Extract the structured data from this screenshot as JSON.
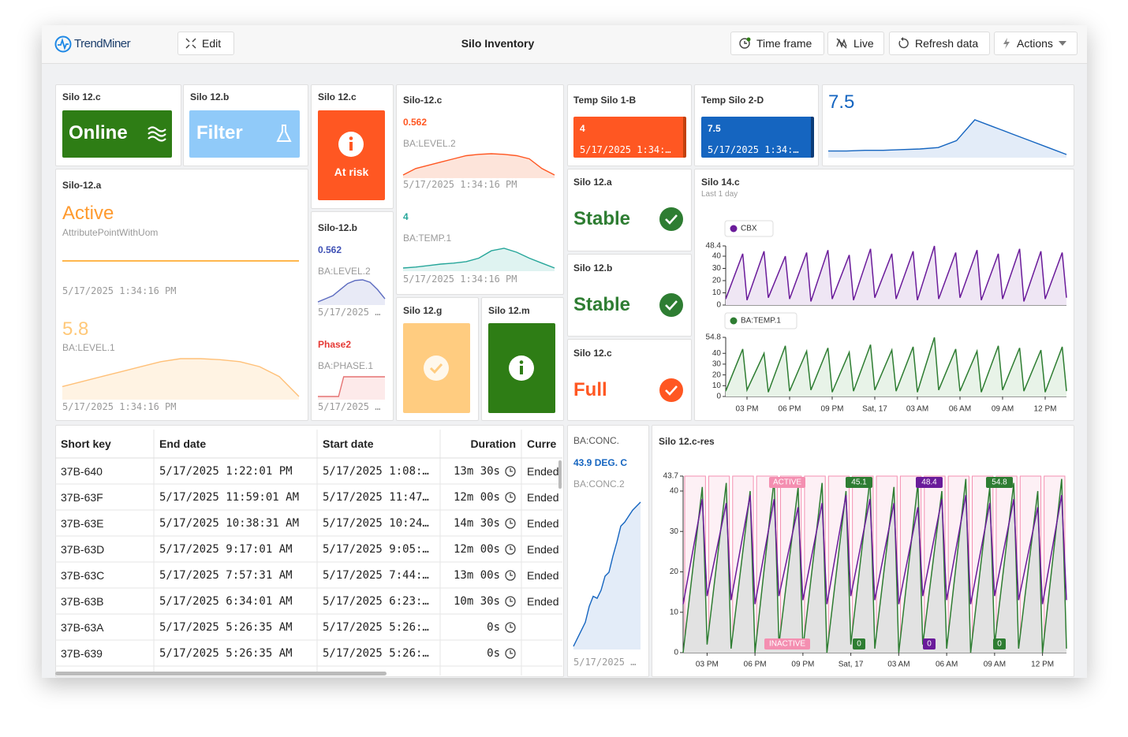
{
  "header": {
    "logo": "TrendMiner",
    "edit": "Edit",
    "title": "Silo Inventory",
    "buttons": [
      "Time frame",
      "Live",
      "Refresh data",
      "Actions"
    ]
  },
  "tiles": {
    "online": {
      "title": "Silo 12.c",
      "status": "Online"
    },
    "filter": {
      "title": "Silo 12.b",
      "status": "Filter"
    },
    "at_risk": {
      "title": "Silo 12.c",
      "status": "At risk"
    },
    "silo12c": {
      "title": "Silo-12.c",
      "items": [
        {
          "value": "0.562",
          "tag": "BA:LEVEL.2",
          "time": "5/17/2025 1:34:16 PM",
          "spark": [
            8,
            9,
            9.5,
            10,
            10.5,
            11,
            11.2,
            11.3,
            11.2,
            11,
            10.5,
            9,
            8
          ]
        },
        {
          "value": "4",
          "tag": "BA:TEMP.1",
          "time": "5/17/2025 1:34:16 PM",
          "spark": [
            3,
            3.2,
            3.5,
            3.8,
            4,
            4.3,
            5,
            6.5,
            7,
            6.2,
            5,
            4,
            3
          ]
        }
      ]
    },
    "temp1b": {
      "title": "Temp Silo 1-B",
      "value": "4",
      "time": "5/17/2025 1:34:…"
    },
    "temp2d": {
      "title": "Temp Silo 2-D",
      "value": "7.5",
      "time": "5/17/2025 1:34:…"
    },
    "value_tile": {
      "value": "7.5",
      "spark": [
        3,
        3,
        3.1,
        3.1,
        3.2,
        3.3,
        3.5,
        4.5,
        7.5,
        6.5,
        5.5,
        4.5,
        3.5,
        2.5
      ]
    },
    "silo12a": {
      "title": "Silo-12.a",
      "state": "Active",
      "attr": "AttributePointWithUom",
      "time": "5/17/2025 1:34:16 PM",
      "value": "5.8",
      "tag": "BA:LEVEL.1",
      "time2": "5/17/2025 1:34:16 PM",
      "spark": [
        3,
        3.5,
        4,
        4.5,
        5,
        5.5,
        5.8,
        5.8,
        5.7,
        5.5,
        5,
        4,
        2
      ]
    },
    "silo12b": {
      "title": "Silo-12.b",
      "value": "0.562",
      "tag": "BA:LEVEL.2",
      "time": "5/17/2025 …",
      "spark": [
        2,
        2.5,
        3,
        4,
        5,
        5.5,
        5.6,
        5.2,
        4,
        2.5
      ],
      "phase": "Phase2",
      "phase_tag": "BA:PHASE.1",
      "phase_time": "5/17/2025 …",
      "phase_spark": [
        0,
        0,
        0,
        0,
        0,
        1,
        1,
        1,
        1,
        1,
        1,
        1,
        1,
        1
      ]
    },
    "silo12g": {
      "title": "Silo 12.g"
    },
    "silo12m": {
      "title": "Silo 12.m"
    },
    "stable_a": {
      "title": "Silo 12.a",
      "status": "Stable"
    },
    "stable_b": {
      "title": "Silo 12.b",
      "status": "Stable"
    },
    "full": {
      "title": "Silo 12.c",
      "status": "Full"
    },
    "conc": {
      "title": "BA:CONC.",
      "value": "43.9 DEG. C",
      "tag": "BA:CONC.2",
      "time": "5/17/2025 …",
      "spark": [
        10,
        14,
        18,
        22,
        30,
        35,
        34,
        38,
        45,
        47,
        55,
        62,
        70,
        72,
        75,
        78,
        80,
        82
      ]
    }
  },
  "table": {
    "columns": [
      "Short key",
      "End date",
      "Start date",
      "Duration",
      "Curren"
    ],
    "rows": [
      [
        "37B-640",
        "5/17/2025 1:22:01 PM",
        "5/17/2025 1:08:…",
        "13m 30s",
        "Ended"
      ],
      [
        "37B-63F",
        "5/17/2025 11:59:01 AM",
        "5/17/2025 11:47…",
        "12m 00s",
        "Ended"
      ],
      [
        "37B-63E",
        "5/17/2025 10:38:31 AM",
        "5/17/2025 10:24…",
        "14m 30s",
        "Ended"
      ],
      [
        "37B-63D",
        "5/17/2025 9:17:01 AM",
        "5/17/2025 9:05:…",
        "12m 00s",
        "Ended"
      ],
      [
        "37B-63C",
        "5/17/2025 7:57:31 AM",
        "5/17/2025 7:44:…",
        "13m 00s",
        "Ended"
      ],
      [
        "37B-63B",
        "5/17/2025 6:34:01 AM",
        "5/17/2025 6:23:…",
        "10m 30s",
        "Ended"
      ],
      [
        "37B-63A",
        "5/17/2025 5:26:35 AM",
        "5/17/2025 5:26:…",
        "0s"
      ],
      [
        "37B-639",
        "5/17/2025 5:26:35 AM",
        "5/17/2025 5:26:…",
        "0s"
      ]
    ]
  },
  "chart_data": [
    {
      "type": "line",
      "title": "Silo 14.c",
      "subtitle": "Last 1 day",
      "x": [
        13.5,
        14.7,
        15,
        16.2,
        16.5,
        17.7,
        18,
        19.2,
        19.5,
        20.7,
        21,
        22.2,
        22.5,
        23.7,
        24,
        25.2,
        25.5,
        26.7,
        27,
        28.2,
        28.5,
        29.7,
        30,
        31.2,
        31.5,
        32.7,
        33,
        34.2,
        34.5,
        35.7,
        36,
        37.2,
        37.5
      ],
      "series": [
        {
          "name": "CBX",
          "color": "#6a1b9a",
          "values": [
            5,
            42,
            4,
            44,
            6,
            40,
            5,
            43,
            3,
            45,
            5,
            41,
            4,
            46,
            6,
            42,
            5,
            44,
            4,
            48.4,
            5,
            43,
            6,
            45,
            4,
            42,
            5,
            46,
            3,
            44,
            5,
            43,
            6
          ]
        }
      ],
      "xlim": [
        13.5,
        37.5
      ],
      "ylim": [
        0,
        48.4
      ],
      "yticks": [
        0,
        10,
        20,
        30,
        40,
        48.4
      ]
    },
    {
      "type": "line",
      "x": [
        13.5,
        14.7,
        15,
        16.2,
        16.5,
        17.7,
        18,
        19.2,
        19.5,
        20.7,
        21,
        22.2,
        22.5,
        23.7,
        24,
        25.2,
        25.5,
        26.7,
        27,
        28.2,
        28.5,
        29.7,
        30,
        31.2,
        31.5,
        32.7,
        33,
        34.2,
        34.5,
        35.7,
        36,
        37.2,
        37.5
      ],
      "series": [
        {
          "name": "BA:TEMP.1",
          "color": "#2e7d32",
          "values": [
            5,
            44,
            6,
            40,
            4,
            47,
            5,
            42,
            6,
            45,
            4,
            41,
            5,
            48,
            6,
            43,
            5,
            46,
            4,
            54.8,
            6,
            44,
            5,
            42,
            4,
            47,
            6,
            45,
            5,
            43,
            4,
            46,
            5
          ]
        }
      ],
      "xlim": [
        13.5,
        37.5
      ],
      "ylim": [
        0,
        54.8
      ],
      "yticks": [
        0,
        10,
        20,
        30,
        40,
        54.8
      ],
      "xticks": [
        {
          "value": 15,
          "label": "03 PM"
        },
        {
          "value": 18,
          "label": "06 PM"
        },
        {
          "value": 21,
          "label": "09 PM"
        },
        {
          "value": 24,
          "label": "Sat, 17"
        },
        {
          "value": 27,
          "label": "03 AM"
        },
        {
          "value": 30,
          "label": "06 AM"
        },
        {
          "value": 33,
          "label": "09 AM"
        },
        {
          "value": 36,
          "label": "12 PM"
        }
      ]
    },
    {
      "type": "line",
      "title": "Silo 12.c-res",
      "x": [
        13.5,
        14.7,
        15,
        16.2,
        16.5,
        17.7,
        18,
        19.2,
        19.5,
        20.7,
        21,
        22.2,
        22.5,
        23.7,
        24,
        25.2,
        25.5,
        26.7,
        27,
        28.2,
        28.5,
        29.7,
        30,
        31.2,
        31.5,
        32.7,
        33,
        34.2,
        34.5,
        35.7,
        36,
        37.2,
        37.5
      ],
      "series": [
        {
          "color": "#2e7d32",
          "values": [
            0,
            41,
            2,
            42,
            1,
            40,
            0,
            43,
            2,
            41,
            1,
            42,
            0,
            40,
            2,
            43,
            1,
            41,
            0,
            42,
            2,
            40,
            1,
            43,
            0,
            41,
            2,
            42,
            1,
            40,
            0,
            43,
            1
          ]
        },
        {
          "color": "#6a1b9a",
          "values": [
            12,
            38,
            14,
            37,
            13,
            39,
            12,
            38,
            14,
            36,
            13,
            37,
            12,
            39,
            14,
            38,
            13,
            37,
            12,
            36,
            14,
            38,
            13,
            39,
            12,
            37,
            14,
            38,
            13,
            36,
            12,
            39,
            13
          ]
        }
      ],
      "bands": [
        [
          13.6,
          14.9
        ],
        [
          15.1,
          16.4
        ],
        [
          16.6,
          17.9
        ],
        [
          18.1,
          19.4
        ],
        [
          19.6,
          20.9
        ],
        [
          21.1,
          22.4
        ],
        [
          22.6,
          23.9
        ],
        [
          24.1,
          25.4
        ],
        [
          25.6,
          26.9
        ],
        [
          27.1,
          28.4
        ],
        [
          28.6,
          29.9
        ],
        [
          30.1,
          31.4
        ],
        [
          31.6,
          32.9
        ],
        [
          33.1,
          34.4
        ],
        [
          34.6,
          35.9
        ],
        [
          36.1,
          37.4
        ]
      ],
      "annotations": [
        {
          "text": "ACTIVE",
          "color": "#f48fb1"
        },
        {
          "text": "INACTIVE",
          "color": "#f48fb1"
        },
        {
          "text": "45.1",
          "color": "#2e7d32"
        },
        {
          "text": "48.4",
          "color": "#6a1b9a"
        },
        {
          "text": "54.8",
          "color": "#2e7d32"
        },
        {
          "text": "0",
          "color": "#2e7d32"
        },
        {
          "text": "0",
          "color": "#6a1b9a"
        },
        {
          "text": "0",
          "color": "#2e7d32"
        }
      ],
      "xlim": [
        13.5,
        37.5
      ],
      "ylim": [
        0,
        43.7
      ],
      "yticks": [
        0,
        10,
        20,
        30,
        40,
        43.7
      ],
      "xticks": [
        {
          "value": 15,
          "label": "03 PM"
        },
        {
          "value": 18,
          "label": "06 PM"
        },
        {
          "value": 21,
          "label": "09 PM"
        },
        {
          "value": 24,
          "label": "Sat, 17"
        },
        {
          "value": 27,
          "label": "03 AM"
        },
        {
          "value": 30,
          "label": "06 AM"
        },
        {
          "value": 33,
          "label": "09 AM"
        },
        {
          "value": 36,
          "label": "12 PM"
        }
      ]
    }
  ]
}
